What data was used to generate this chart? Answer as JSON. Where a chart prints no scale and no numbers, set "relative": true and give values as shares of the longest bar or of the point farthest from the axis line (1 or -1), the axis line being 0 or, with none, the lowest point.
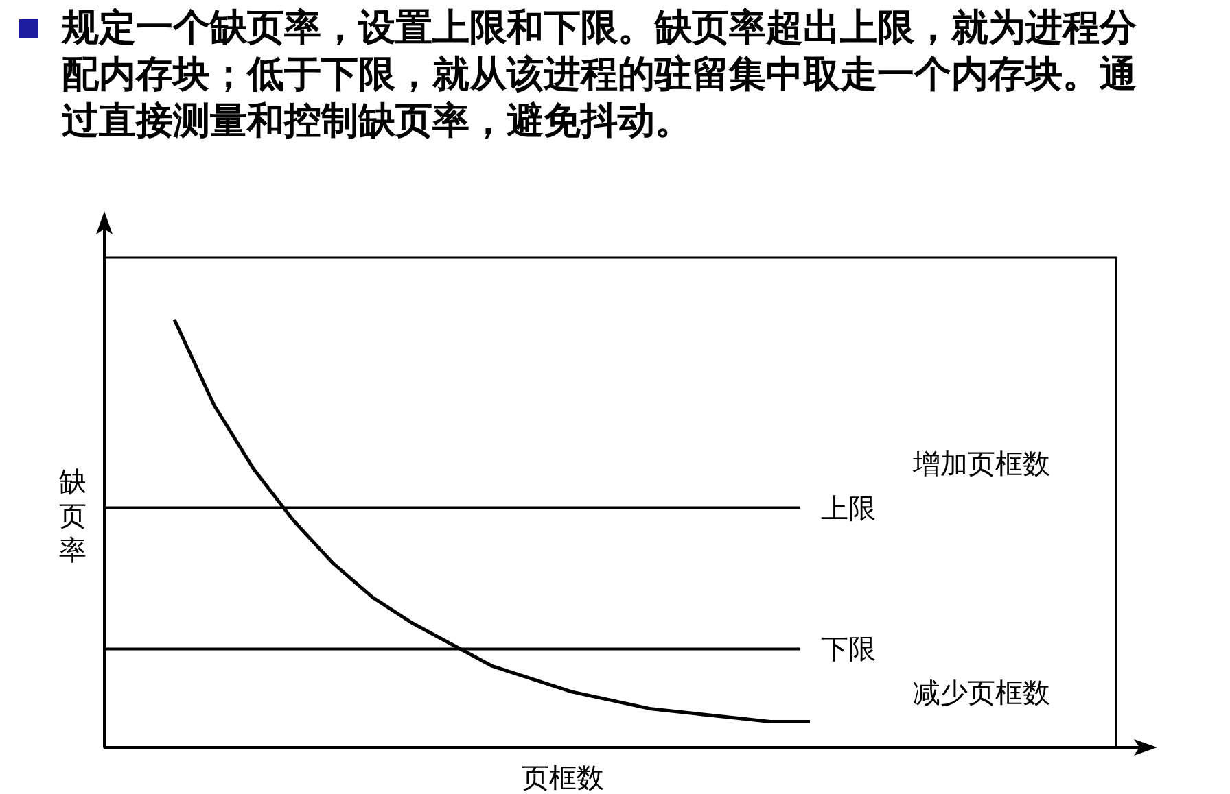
{
  "chart_data": {
    "type": "line",
    "title": "规定一个缺页率，设置上限和下限。缺页率超出上限，就为进程分配内存块；低于下限，就从该进程的驻留集中取走一个内存块。通过直接测量和控制缺页率，避免抖动。",
    "xlabel": "页框数",
    "ylabel": "缺页率",
    "relative": true,
    "categories": [
      null,
      null,
      null,
      null,
      null,
      null,
      null,
      null,
      null,
      null,
      null,
      null,
      null,
      null,
      null,
      null,
      null
    ],
    "series": [
      {
        "color": "#000000",
        "values": [
          1,
          0.8,
          0.65,
          0.53,
          0.43,
          0.35,
          0.29,
          0.24,
          0.19,
          0.16,
          0.13,
          0.11,
          0.09,
          0.08,
          0.07,
          0.06,
          0.06
        ]
      }
    ],
    "ref_lines": [
      {
        "axis": "y",
        "value": 0.56,
        "label": "上限",
        "color": "#000000"
      },
      {
        "axis": "y",
        "value": 0.23,
        "label": "下限",
        "color": "#000000"
      }
    ],
    "annotations": [
      "增加页框数",
      "减少页框数"
    ],
    "marker": "none",
    "line_style": "solid",
    "grid": false
  }
}
